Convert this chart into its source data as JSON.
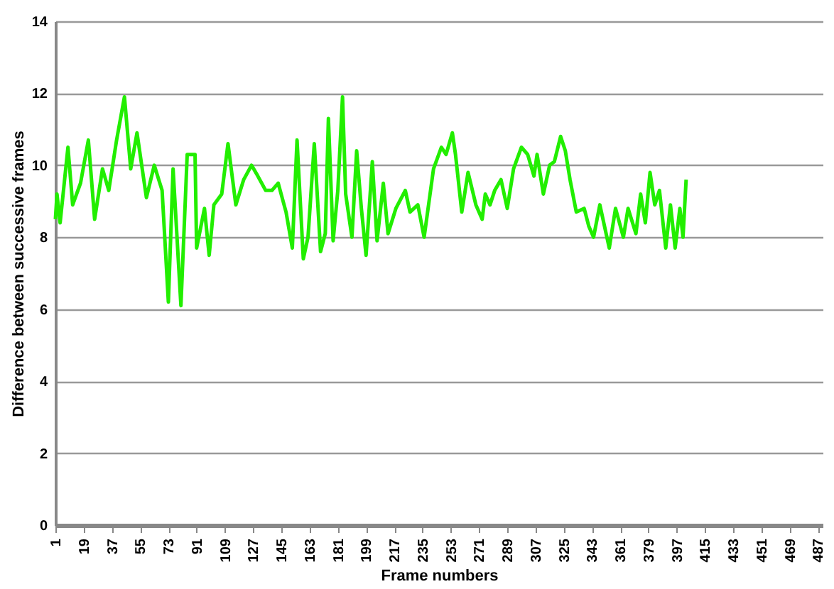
{
  "chart_data": {
    "type": "line",
    "xlabel": "Frame numbers",
    "ylabel": "Difference between successive frames",
    "x": [
      1,
      2,
      4,
      9,
      12,
      17,
      22,
      26,
      31,
      35,
      40,
      45,
      49,
      53,
      59,
      64,
      69,
      73,
      76,
      81,
      85,
      90,
      91,
      96,
      99,
      102,
      107,
      111,
      116,
      121,
      126,
      130,
      135,
      139,
      143,
      148,
      152,
      155,
      159,
      162,
      166,
      170,
      173,
      175,
      178,
      181,
      184,
      186,
      190,
      193,
      196,
      199,
      203,
      206,
      210,
      213,
      218,
      224,
      227,
      232,
      236,
      242,
      247,
      250,
      254,
      256,
      260,
      264,
      269,
      273,
      275,
      278,
      281,
      285,
      289,
      293,
      298,
      302,
      306,
      308,
      312,
      316,
      319,
      323,
      326,
      329,
      333,
      338,
      341,
      344,
      348,
      354,
      358,
      363,
      366,
      371,
      374,
      377,
      380,
      383,
      386,
      390,
      393,
      396,
      399,
      401,
      403
    ],
    "series": [
      {
        "color": "#22ee00",
        "values": [
          8.5,
          9.2,
          8.4,
          10.5,
          8.9,
          9.5,
          10.7,
          8.5,
          9.9,
          9.3,
          10.7,
          11.9,
          9.9,
          10.9,
          9.1,
          10.0,
          9.3,
          6.2,
          9.9,
          6.1,
          10.3,
          10.3,
          7.7,
          8.8,
          7.5,
          8.9,
          9.2,
          10.6,
          8.9,
          9.6,
          10.0,
          9.7,
          9.3,
          9.3,
          9.5,
          8.7,
          7.7,
          10.7,
          7.4,
          8.0,
          10.6,
          7.6,
          8.1,
          11.3,
          7.9,
          9.3,
          11.9,
          9.2,
          8.0,
          10.4,
          8.8,
          7.5,
          10.1,
          7.9,
          9.5,
          8.1,
          8.8,
          9.3,
          8.7,
          8.9,
          8.0,
          9.9,
          10.5,
          10.3,
          10.9,
          10.3,
          8.7,
          9.8,
          8.9,
          8.5,
          9.2,
          8.9,
          9.3,
          9.6,
          8.8,
          9.9,
          10.5,
          10.3,
          9.7,
          10.3,
          9.2,
          10.0,
          10.1,
          10.8,
          10.4,
          9.6,
          8.7,
          8.8,
          8.3,
          8.0,
          8.9,
          7.7,
          8.8,
          8.0,
          8.8,
          8.1,
          9.2,
          8.4,
          9.8,
          8.9,
          9.3,
          7.7,
          8.9,
          7.7,
          8.8,
          8.0,
          9.6
        ]
      }
    ],
    "xlim": [
      1,
      490
    ],
    "xticks": [
      1,
      19,
      37,
      55,
      73,
      91,
      109,
      127,
      145,
      163,
      181,
      199,
      217,
      235,
      253,
      271,
      289,
      307,
      325,
      343,
      361,
      379,
      397,
      415,
      433,
      451,
      469,
      487
    ],
    "ylim": [
      0,
      14
    ],
    "yticks": [
      0,
      2,
      4,
      6,
      8,
      10,
      12,
      14
    ],
    "grid": "y",
    "marker": "none",
    "line_style": "solid"
  }
}
